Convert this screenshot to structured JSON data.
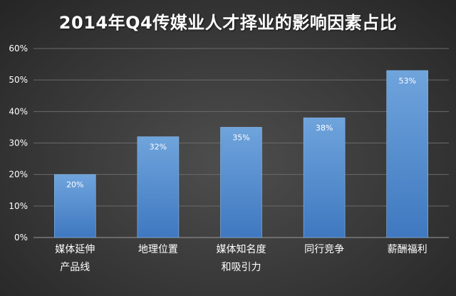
{
  "chart_data": {
    "type": "bar",
    "title": "2014年Q4传媒业人才择业的影响因素占比",
    "categories": [
      [
        "媒体延伸",
        "产品线"
      ],
      [
        "地理位置"
      ],
      [
        "媒体知名度",
        "和吸引力"
      ],
      [
        "同行竞争"
      ],
      [
        "薪酬福利"
      ]
    ],
    "values": [
      20,
      32,
      35,
      38,
      53
    ],
    "data_labels": [
      "20%",
      "32%",
      "35%",
      "38%",
      "53%"
    ],
    "ylim": [
      0,
      60
    ],
    "yticks": [
      0,
      10,
      20,
      30,
      40,
      50,
      60
    ],
    "ytick_labels": [
      "0%",
      "10%",
      "20%",
      "30%",
      "40%",
      "50%",
      "60%"
    ],
    "xlabel": "",
    "ylabel": "",
    "grid": true,
    "legend": "none",
    "colors": {
      "bar_top": "#6fa4dc",
      "bar_bottom": "#3f78c0",
      "bar_edge": "#8ab8e6",
      "grid": "#6a6a6a",
      "axis": "#9a9a9a",
      "text": "#ffffff"
    }
  }
}
